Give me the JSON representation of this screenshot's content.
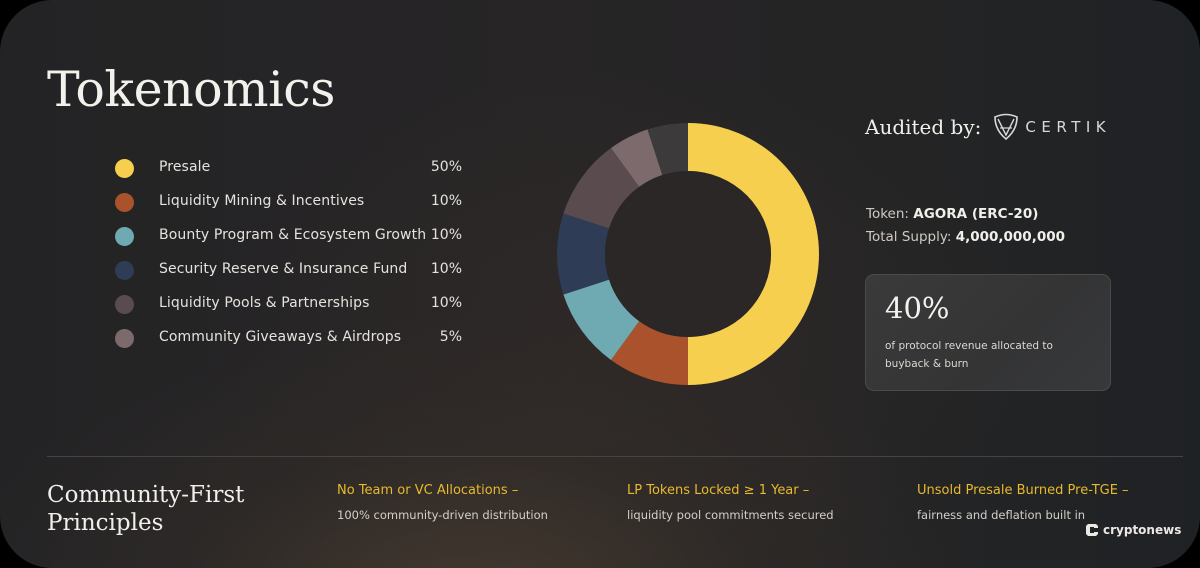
{
  "header": {
    "title": "Tokenomics"
  },
  "legend": {
    "items": [
      {
        "label": "Presale",
        "percent": "50%",
        "color": "#f6cf4f"
      },
      {
        "label": "Liquidity Mining & Incentives",
        "percent": "10%",
        "color": "#a9522c"
      },
      {
        "label": "Bounty Program & Ecosystem Growth",
        "percent": "10%",
        "color": "#6fa9b1"
      },
      {
        "label": "Security Reserve & Insurance Fund",
        "percent": "10%",
        "color": "#2e3d55"
      },
      {
        "label": "Liquidity Pools & Partnerships",
        "percent": "10%",
        "color": "#5a4b4e"
      },
      {
        "label": "Community Giveaways & Airdrops",
        "percent": "5%",
        "color": "#7d6a6c"
      }
    ]
  },
  "chart_data": {
    "type": "pie",
    "title": "Tokenomics",
    "style": "donut",
    "categories": [
      "Presale",
      "Liquidity Mining & Incentives",
      "Bounty Program & Ecosystem Growth",
      "Security Reserve & Insurance Fund",
      "Liquidity Pools & Partnerships",
      "Community Giveaways & Airdrops",
      "Unlabeled"
    ],
    "values": [
      50,
      10,
      10,
      10,
      10,
      5,
      5
    ],
    "colors": [
      "#f6cf4f",
      "#a9522c",
      "#6fa9b1",
      "#2e3d55",
      "#5a4b4e",
      "#7d6a6c",
      "#3d3a3b"
    ],
    "unit": "%",
    "start_angle": "12 o'clock, clockwise",
    "legend_position": "left"
  },
  "audit": {
    "label": "Audited by:",
    "auditor": "CERTIK"
  },
  "token": {
    "token_label": "Token:",
    "token_value": "AGORA (ERC-20)",
    "supply_label": "Total Supply:",
    "supply_value": "4,000,000,000"
  },
  "stat": {
    "value": "40%",
    "caption": "of protocol revenue allocated to buyback & burn"
  },
  "principles": {
    "title_line1": "Community-First",
    "title_line2": "Principles",
    "items": [
      {
        "heading": "No Team or VC Allocations –",
        "detail": "100% community-driven distribution"
      },
      {
        "heading": "LP Tokens Locked ≥ 1 Year –",
        "detail": "liquidity pool commitments secured"
      },
      {
        "heading": "Unsold Presale Burned Pre-TGE –",
        "detail": "fairness and deflation built in"
      }
    ]
  },
  "watermark": {
    "brand": "cryptonews"
  }
}
